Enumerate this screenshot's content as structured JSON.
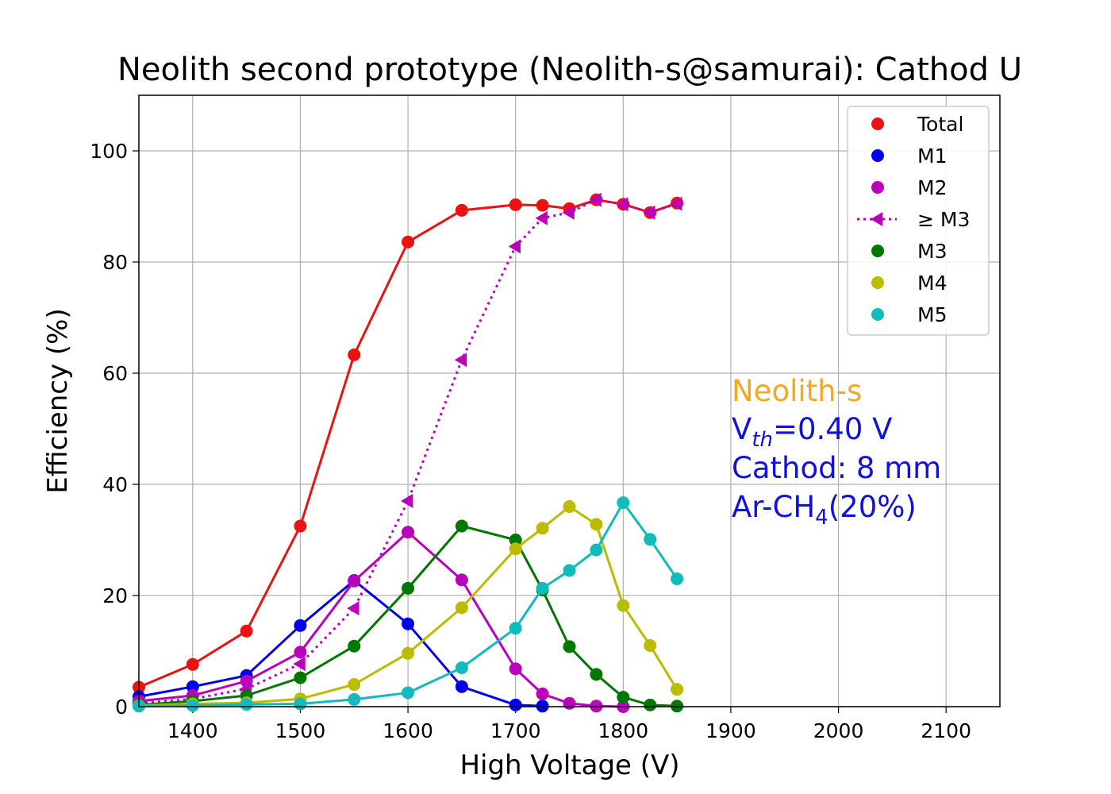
{
  "chart_data": {
    "type": "line",
    "title": "Neolith second prototype (Neolith-s@samurai): Cathod U",
    "xlabel": "High Voltage (V)",
    "ylabel": "Efficiency (%)",
    "xlim": [
      1350,
      2150
    ],
    "ylim": [
      0,
      110
    ],
    "xticks": [
      1400,
      1500,
      1600,
      1700,
      1800,
      1900,
      2000,
      2100
    ],
    "yticks": [
      0,
      20,
      40,
      60,
      80,
      100
    ],
    "grid": true,
    "legend_position": "top-right",
    "series": [
      {
        "name": "Total",
        "color": "#ee1111",
        "marker": "circle",
        "line": "solid",
        "x": [
          1350,
          1400,
          1450,
          1500,
          1550,
          1600,
          1650,
          1700,
          1725,
          1750,
          1775,
          1800,
          1825,
          1850
        ],
        "y": [
          3.5,
          7.6,
          13.6,
          32.5,
          63.3,
          83.6,
          89.3,
          90.3,
          90.2,
          89.6,
          91.2,
          90.4,
          88.9,
          90.6
        ]
      },
      {
        "name": "M1",
        "color": "#0000ee",
        "marker": "circle",
        "line": "solid",
        "x": [
          1350,
          1400,
          1450,
          1500,
          1550,
          1600,
          1650,
          1700,
          1725
        ],
        "y": [
          1.8,
          3.6,
          5.6,
          14.6,
          22.7,
          14.9,
          3.6,
          0.3,
          0.1
        ]
      },
      {
        "name": "M2",
        "color": "#bb00bb",
        "marker": "circle",
        "line": "solid",
        "x": [
          1350,
          1400,
          1450,
          1500,
          1550,
          1600,
          1650,
          1700,
          1725,
          1750,
          1775,
          1800
        ],
        "y": [
          1.0,
          2.0,
          4.6,
          9.8,
          22.6,
          31.4,
          22.8,
          6.8,
          2.3,
          0.6,
          0.1,
          0.0
        ]
      },
      {
        "name": "≥ M3",
        "color": "#bb00bb",
        "marker": "triangle-left",
        "line": "dotted",
        "x": [
          1350,
          1400,
          1450,
          1500,
          1550,
          1600,
          1650,
          1700,
          1725,
          1750,
          1775,
          1800,
          1825,
          1850
        ],
        "y": [
          0.6,
          1.4,
          3.2,
          7.7,
          17.7,
          37.0,
          62.4,
          82.8,
          87.9,
          88.9,
          91.2,
          90.4,
          88.9,
          90.5
        ]
      },
      {
        "name": "M3",
        "color": "#007700",
        "marker": "circle",
        "line": "solid",
        "x": [
          1350,
          1400,
          1450,
          1500,
          1550,
          1600,
          1650,
          1700,
          1725,
          1750,
          1775,
          1800,
          1825,
          1850
        ],
        "y": [
          0.3,
          1.0,
          2.0,
          5.2,
          10.9,
          21.3,
          32.5,
          30.0,
          21.0,
          10.8,
          5.8,
          1.7,
          0.3,
          0.1
        ]
      },
      {
        "name": "M4",
        "color": "#bbbb00",
        "marker": "circle",
        "line": "solid",
        "x": [
          1350,
          1400,
          1450,
          1500,
          1550,
          1600,
          1650,
          1700,
          1725,
          1750,
          1775,
          1800,
          1825,
          1850
        ],
        "y": [
          0.2,
          0.5,
          0.7,
          1.4,
          4.0,
          9.6,
          17.8,
          28.4,
          32.1,
          36.0,
          32.8,
          18.2,
          11.0,
          3.1
        ]
      },
      {
        "name": "M5",
        "color": "#11bbbb",
        "marker": "circle",
        "line": "solid",
        "x": [
          1350,
          1400,
          1450,
          1500,
          1550,
          1600,
          1650,
          1700,
          1725,
          1750,
          1775,
          1800,
          1825,
          1850
        ],
        "y": [
          0.1,
          0.2,
          0.4,
          0.5,
          1.3,
          2.5,
          7.0,
          14.1,
          21.3,
          24.5,
          28.2,
          36.7,
          30.1,
          23.0
        ]
      }
    ],
    "annotations": {
      "detector": {
        "text": "Neolith-s",
        "color": "#f5a623"
      },
      "vth": {
        "text_main": "V",
        "text_sub": "th",
        "text_rest": "=0.40 V",
        "color": "#1111dd"
      },
      "cathode": {
        "text": "Cathod: 8 mm",
        "color": "#1111dd"
      },
      "gas": {
        "text_main": "Ar-CH",
        "text_sub": "4",
        "text_rest": "(20%)",
        "color": "#1111dd"
      }
    }
  }
}
